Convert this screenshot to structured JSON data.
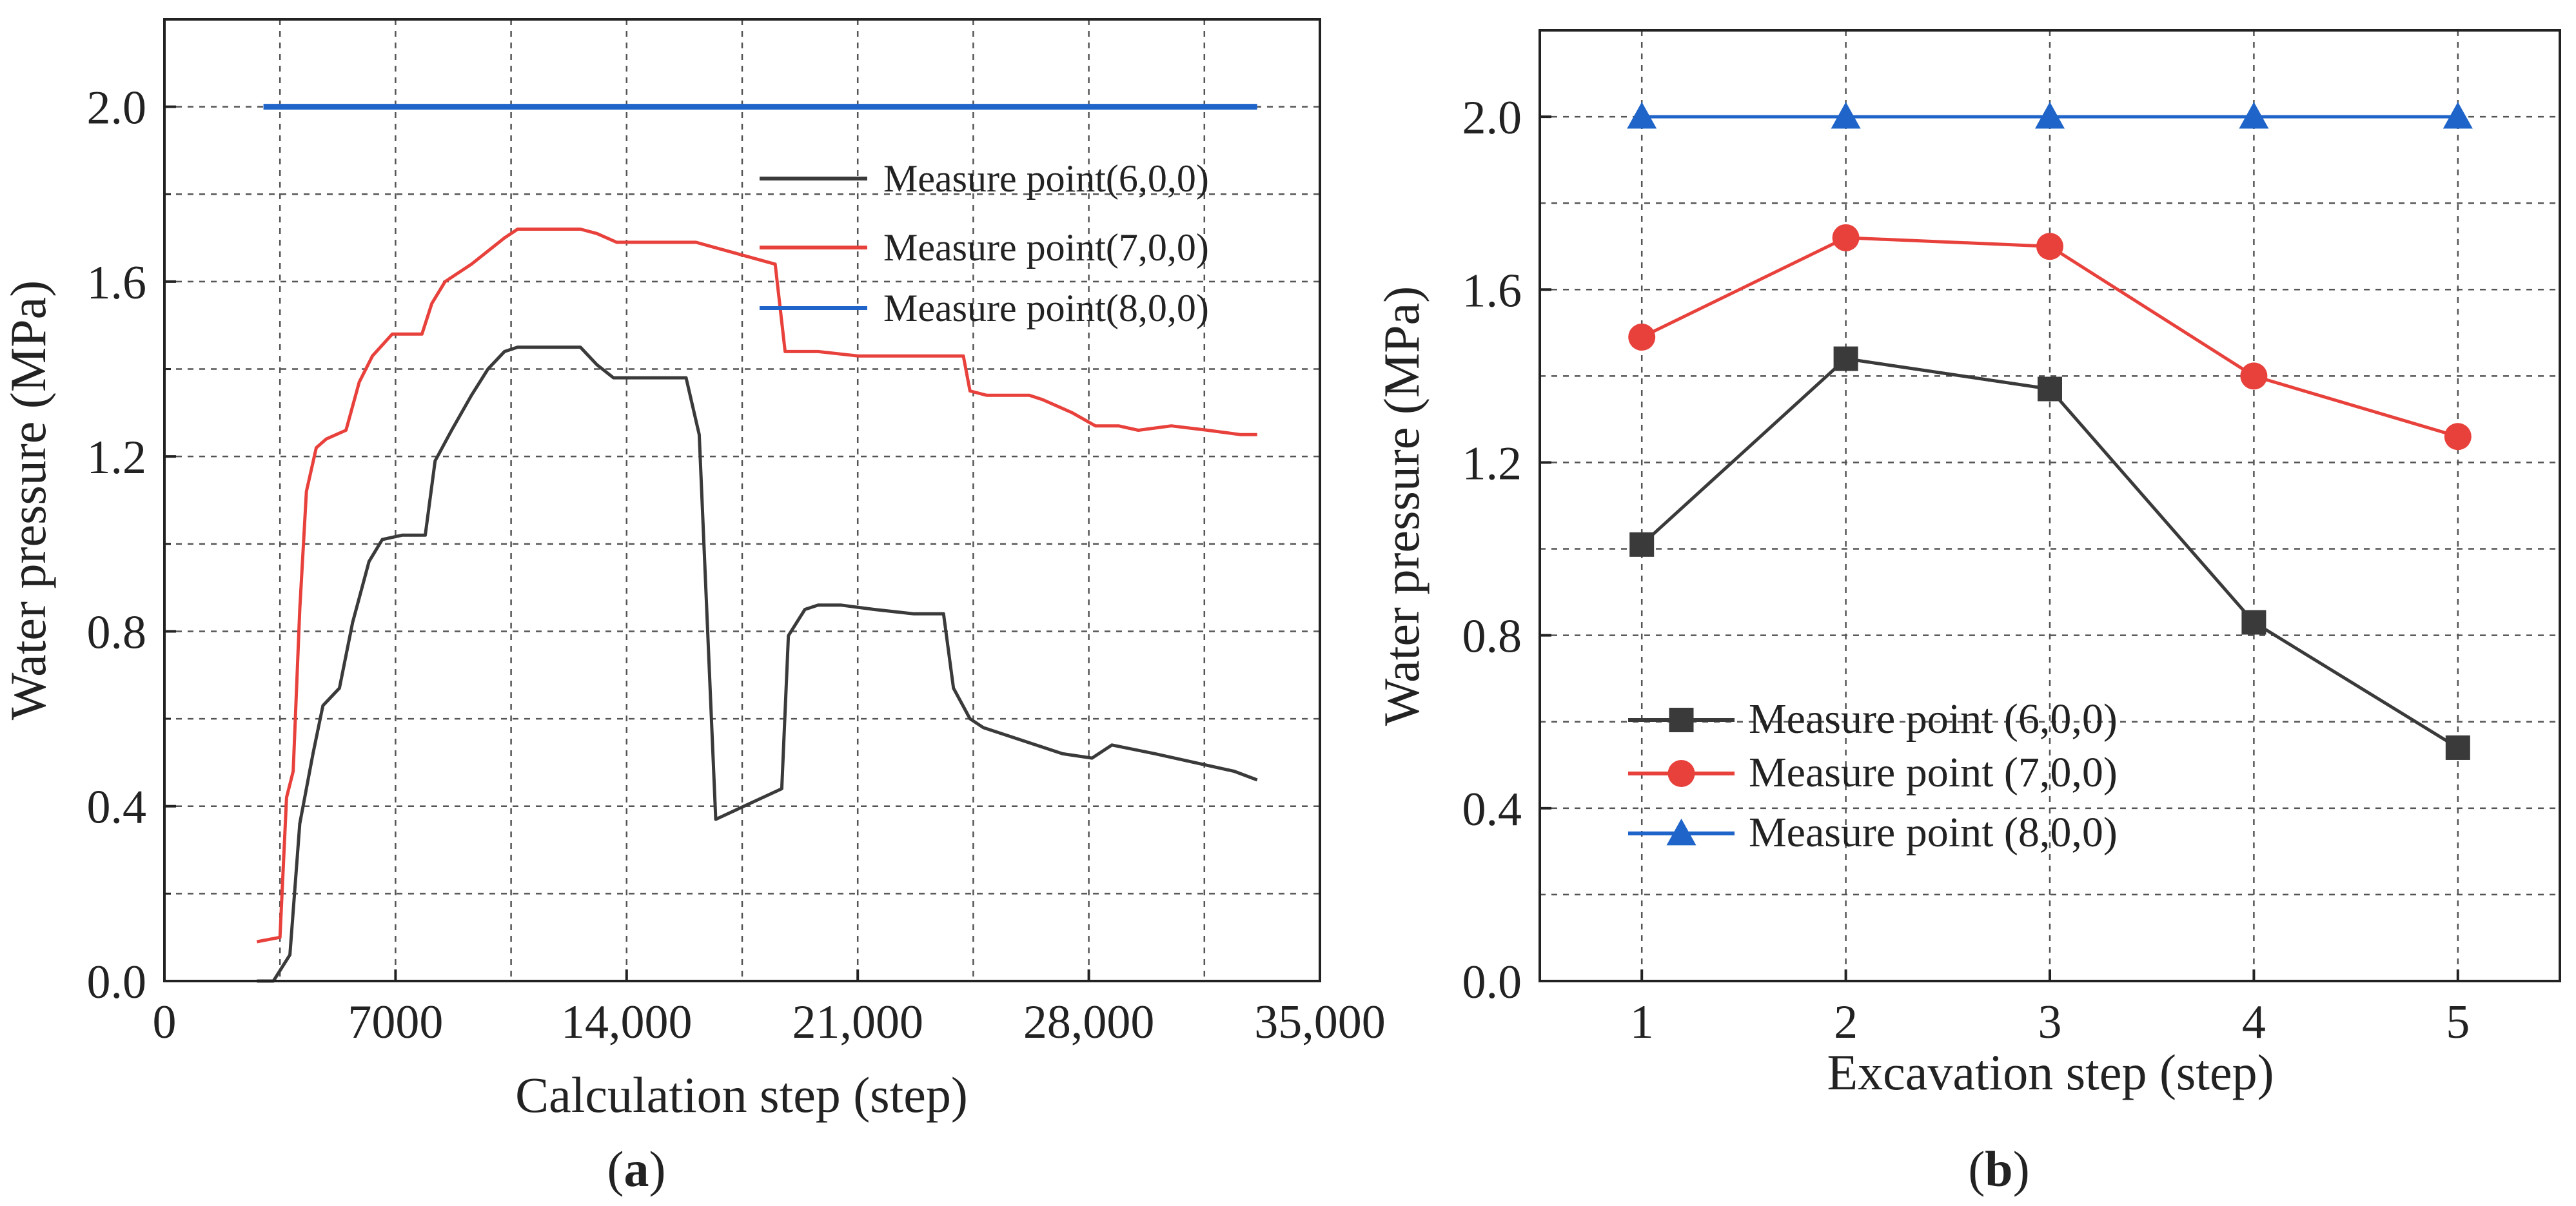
{
  "chart_data": [
    {
      "id": "a",
      "type": "line",
      "panel_label": "a",
      "xlabel": "Calculation step (step)",
      "ylabel": "Water pressure (MPa)",
      "xlim": [
        0,
        35000
      ],
      "ylim": [
        0,
        2.2
      ],
      "xticks": [
        0,
        7000,
        14000,
        21000,
        28000,
        35000
      ],
      "xtick_labels": [
        "0",
        "7000",
        "14,000",
        "21,000",
        "28,000",
        "35,000"
      ],
      "yticks": [
        0,
        0.4,
        0.8,
        1.2,
        1.6,
        2.0
      ],
      "ytick_labels": [
        "0.0",
        "0.4",
        "0.8",
        "1.2",
        "1.6",
        "2.0"
      ],
      "grid": true,
      "legend_position": "upper-right",
      "series": [
        {
          "name": "Measure point(6,0,0)",
          "color": "#3a3a3a",
          "x": [
            2800,
            3300,
            3800,
            4100,
            4500,
            4800,
            5300,
            5700,
            6200,
            6600,
            7200,
            7900,
            8200,
            8700,
            9300,
            9800,
            10300,
            10700,
            11300,
            12600,
            13100,
            13600,
            14000,
            15800,
            16200,
            16700,
            18700,
            18900,
            19400,
            19800,
            20500,
            21500,
            22700,
            23600,
            23900,
            24400,
            24800,
            26000,
            27200,
            28100,
            28700,
            30000,
            31200,
            32400,
            33100
          ],
          "y": [
            0.0,
            0.0,
            0.06,
            0.36,
            0.52,
            0.63,
            0.67,
            0.82,
            0.96,
            1.01,
            1.02,
            1.02,
            1.19,
            1.26,
            1.34,
            1.4,
            1.44,
            1.45,
            1.45,
            1.45,
            1.41,
            1.38,
            1.38,
            1.38,
            1.25,
            0.37,
            0.44,
            0.79,
            0.85,
            0.86,
            0.86,
            0.85,
            0.84,
            0.84,
            0.67,
            0.6,
            0.58,
            0.55,
            0.52,
            0.51,
            0.54,
            0.52,
            0.5,
            0.48,
            0.46
          ]
        },
        {
          "name": "Measure point(7,0,0)",
          "color": "#e8413c",
          "x": [
            2800,
            3500,
            3700,
            3900,
            4100,
            4300,
            4600,
            4900,
            5500,
            5900,
            6300,
            6900,
            7800,
            8100,
            8500,
            9300,
            9800,
            10300,
            10700,
            11300,
            12600,
            13100,
            13700,
            15300,
            16100,
            18500,
            18800,
            19300,
            19800,
            21000,
            22700,
            24200,
            24400,
            24900,
            26200,
            26600,
            27500,
            28200,
            28900,
            29500,
            30500,
            31600,
            32600,
            33100
          ],
          "y": [
            0.09,
            0.1,
            0.42,
            0.48,
            0.85,
            1.12,
            1.22,
            1.24,
            1.26,
            1.37,
            1.43,
            1.48,
            1.48,
            1.55,
            1.6,
            1.64,
            1.67,
            1.7,
            1.72,
            1.72,
            1.72,
            1.71,
            1.69,
            1.69,
            1.69,
            1.64,
            1.44,
            1.44,
            1.44,
            1.43,
            1.43,
            1.43,
            1.35,
            1.34,
            1.34,
            1.33,
            1.3,
            1.27,
            1.27,
            1.26,
            1.27,
            1.26,
            1.25,
            1.25
          ]
        },
        {
          "name": "Measure point(8,0,0)",
          "color": "#1f64c8",
          "x": [
            3000,
            33100
          ],
          "y": [
            2.0,
            2.0
          ]
        }
      ]
    },
    {
      "id": "b",
      "type": "line",
      "panel_label": "b",
      "xlabel": "Excavation step (step)",
      "ylabel": "Water pressure (MPa)",
      "xlim": [
        0.5,
        5.5
      ],
      "ylim": [
        0,
        2.2
      ],
      "xticks": [
        1,
        2,
        3,
        4,
        5
      ],
      "xtick_labels": [
        "1",
        "2",
        "3",
        "4",
        "5"
      ],
      "yticks": [
        0,
        0.4,
        0.8,
        1.2,
        1.6,
        2.0
      ],
      "ytick_labels": [
        "0.0",
        "0.4",
        "0.8",
        "1.2",
        "1.6",
        "2.0"
      ],
      "grid": true,
      "legend_position": "lower-left",
      "series": [
        {
          "name": "Measure point (6,0,0)",
          "color": "#3a3a3a",
          "marker": "square",
          "x": [
            1,
            2,
            3,
            4,
            5
          ],
          "y": [
            1.01,
            1.44,
            1.37,
            0.83,
            0.54
          ]
        },
        {
          "name": "Measure point (7,0,0)",
          "color": "#e8413c",
          "marker": "circle",
          "x": [
            1,
            2,
            3,
            4,
            5
          ],
          "y": [
            1.49,
            1.72,
            1.7,
            1.4,
            1.26
          ]
        },
        {
          "name": "Measure point (8,0,0)",
          "color": "#1f64c8",
          "marker": "triangle",
          "x": [
            1,
            2,
            3,
            4,
            5
          ],
          "y": [
            2.0,
            2.0,
            2.0,
            2.0,
            2.0
          ]
        }
      ]
    }
  ]
}
